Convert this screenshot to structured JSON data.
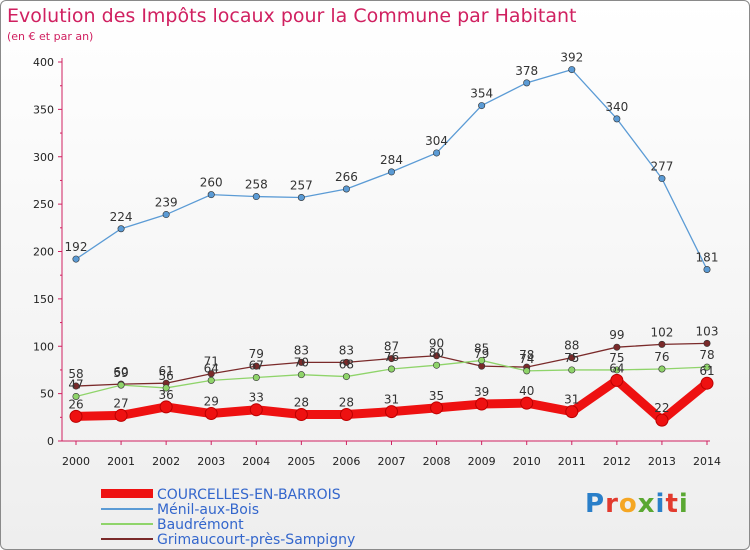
{
  "title": "Evolution des Impôts locaux pour la Commune par Habitant",
  "subtitle": "(en € et par an)",
  "logo": {
    "text": "Proxiti",
    "colors": [
      "#2a7fc9",
      "#e23a2e",
      "#f5a623",
      "#5aa832",
      "#2a7fc9",
      "#e23a2e",
      "#5aa832"
    ]
  },
  "chart_data": {
    "type": "line",
    "x": [
      2000,
      2001,
      2002,
      2003,
      2004,
      2005,
      2006,
      2007,
      2008,
      2009,
      2010,
      2011,
      2012,
      2013,
      2014
    ],
    "ylim": [
      0,
      400
    ],
    "yticks": [
      0,
      50,
      100,
      150,
      200,
      250,
      300,
      350,
      400
    ],
    "grid": false,
    "legend_position": "bottom-left",
    "series": [
      {
        "name": "COURCELLES-EN-BARROIS",
        "color": "#ee1111",
        "emphasis": true,
        "values": [
          26,
          27,
          36,
          29,
          33,
          28,
          28,
          31,
          35,
          39,
          40,
          31,
          64,
          22,
          61
        ],
        "labels": [
          "26",
          "27",
          "36",
          "29",
          "33",
          "28",
          "28",
          "31",
          "35",
          "39",
          "40",
          "31",
          "64",
          "22",
          "61"
        ]
      },
      {
        "name": "Ménil-aux-Bois",
        "color": "#5b9bd5",
        "values": [
          192,
          224,
          239,
          260,
          258,
          257,
          266,
          284,
          304,
          354,
          378,
          392,
          340,
          277,
          181
        ],
        "labels": [
          "192",
          "224",
          "239",
          "260",
          "258",
          "257",
          "266",
          "284",
          "304",
          "354",
          "378",
          "392",
          "340",
          "277",
          "181"
        ]
      },
      {
        "name": "Baudrémont",
        "color": "#8fd46a",
        "values": [
          47,
          59,
          56,
          64,
          67,
          70,
          68,
          76,
          80,
          85,
          74,
          75,
          75,
          76,
          78
        ],
        "labels": [
          "47",
          "59",
          "56",
          "64",
          "67",
          "70",
          "68",
          "76",
          "80",
          "85",
          "74",
          "75",
          "75",
          "76",
          "78"
        ]
      },
      {
        "name": "Grimaucourt-près-Sampigny",
        "color": "#7a2a2a",
        "values": [
          58,
          60,
          61,
          71,
          79,
          83,
          83,
          87,
          90,
          79,
          78,
          88,
          99,
          102,
          103
        ],
        "labels": [
          "58",
          "60",
          "61",
          "71",
          "79",
          "83",
          "83",
          "87",
          "90",
          "79",
          "78",
          "88",
          "99",
          "102",
          "103"
        ]
      }
    ]
  }
}
